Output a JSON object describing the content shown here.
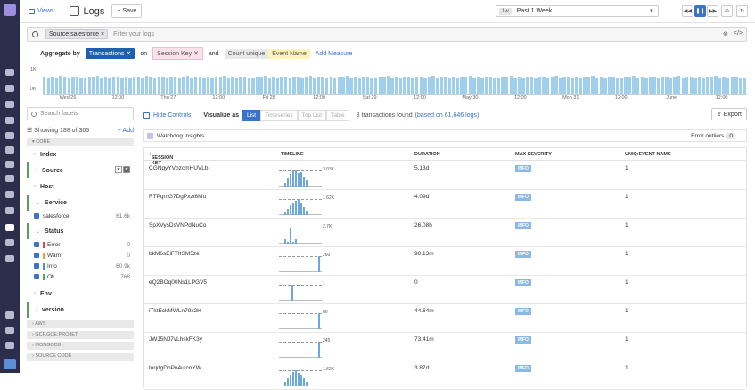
{
  "topbar": {
    "views_label": "Views",
    "title": "Logs",
    "save_label": "+ Save",
    "time_badge": "1w",
    "time_label": "Past 1 Week"
  },
  "search": {
    "chip": "Source:salesforce",
    "placeholder": "Filter your logs"
  },
  "aggregate": {
    "label": "Aggregate by",
    "group": "Transactions",
    "on_label": "on",
    "key": "Session Key",
    "and_label": "and",
    "measure_fn": "Count unique",
    "measure_field": "Event Name",
    "add_measure": "Add Measure"
  },
  "histogram": {
    "y_top": "1K",
    "y_bottom": "0K",
    "dates": [
      "Wed 26",
      "12:00",
      "Thu 27",
      "12:00",
      "Fri 28",
      "12:00",
      "Sat 29",
      "12:00",
      "May 30",
      "12:00",
      "Mon 31",
      "12:00",
      "June",
      "12:00"
    ],
    "bars": [
      0.72,
      0.68,
      0.7,
      0.66,
      0.74,
      0.7,
      0.68,
      0.72,
      0.7,
      0.66,
      0.68,
      0.72,
      0.7,
      0.74,
      0.66,
      0.7,
      0.68,
      0.72,
      0.7,
      0.68,
      0.7,
      0.66,
      0.72,
      0.7,
      0.68,
      0.74,
      0.7,
      0.66,
      0.72,
      0.7,
      0.68,
      0.7,
      0.72,
      0.66,
      0.7,
      0.74,
      0.68,
      0.72,
      0.7,
      0.66,
      0.7,
      0.68,
      0.72,
      0.7,
      0.74,
      0.66,
      0.7,
      0.68,
      0.72,
      0.7,
      0.68,
      0.66,
      0.7,
      0.72,
      0.74,
      0.68,
      0.7,
      0.66,
      0.72,
      0.7,
      0.68,
      0.7,
      0.72,
      0.66,
      0.7,
      0.74,
      0.68,
      0.72,
      0.7,
      0.66,
      0.7,
      0.68,
      0.72,
      0.7,
      0.74,
      0.66,
      0.7,
      0.68,
      0.72,
      0.7,
      0.68,
      0.66,
      0.7,
      0.72,
      0.74,
      0.68,
      0.7,
      0.66,
      0.72,
      0.7,
      0.68,
      0.7,
      0.72,
      0.66,
      0.7,
      0.74,
      0.68,
      0.72,
      0.7,
      0.66,
      0.7,
      0.68,
      0.72,
      0.7,
      0.74,
      0.66,
      0.7,
      0.68,
      0.72,
      0.7,
      0.68,
      0.66,
      0.7,
      0.72,
      0.74,
      0.68,
      0.7,
      0.66,
      0.72,
      0.7,
      0.68,
      0.7,
      0.72,
      0.66,
      0.7,
      0.74,
      0.68,
      0.72,
      0.7,
      0.66,
      0.7,
      0.68,
      0.72,
      0.7,
      0.74,
      0.66,
      0.7,
      0.68,
      0.72,
      0.7,
      0.68,
      0.66,
      0.7,
      0.72,
      0.74,
      0.68,
      0.7,
      0.66,
      0.72,
      0.7,
      0.68,
      0.7,
      0.72,
      0.66,
      0.7,
      0.74,
      0.68,
      0.72,
      0.7,
      0.66,
      0.7,
      0.68,
      0.72,
      0.7,
      0.74,
      0.66,
      0.7,
      0.68,
      0.72,
      0.7,
      0.68,
      0.66
    ]
  },
  "facets": {
    "search_placeholder": "Search facets",
    "showing": "Showing 188 of 365",
    "add_label": "+ Add",
    "core_label": "CORE",
    "index": "Index",
    "source": "Source",
    "host": "Host",
    "service": "Service",
    "service_value": "salesforce",
    "service_count": "61.6k",
    "status": "Status",
    "status_rows": [
      {
        "label": "Error",
        "count": "0",
        "color": "#e04848"
      },
      {
        "label": "Warn",
        "count": "0",
        "color": "#f0a030"
      },
      {
        "label": "Info",
        "count": "60.9k",
        "color": "#4a90d9"
      },
      {
        "label": "Ok",
        "count": "768",
        "color": "#5aa05a"
      }
    ],
    "env": "Env",
    "version": "version",
    "groups": [
      "AWS",
      "GCP.GCE.PROJET",
      "MONGODB",
      "SOURCE CODE"
    ]
  },
  "main": {
    "hide_controls": "Hide Controls",
    "visualize_as": "Visualize as",
    "tabs": [
      "List",
      "Timeseries",
      "Top List",
      "Table"
    ],
    "found": "8 transactions found",
    "found_link": "(based on 61,646 logs)",
    "export_label": "Export",
    "watchdog": "Watchdog Insights",
    "outliers_label": "Error outliers",
    "outliers_count": "0",
    "columns": [
      "SESSION KEY",
      "TIMELINE",
      "DURATION",
      "MAX SEVERITY",
      "UNIQ:EVENT NAME"
    ],
    "rows": [
      {
        "key": "CGNqyYVbzcmHUVLb",
        "max": "3.03K",
        "duration": "5.13d",
        "severity": "INFO",
        "uniq": "1"
      },
      {
        "key": "RTPqmG7DgPxzt6Mu",
        "max": "1.62K",
        "duration": "4.09d",
        "severity": "INFO",
        "uniq": "1"
      },
      {
        "key": "SpXVysDsVNPdNuCo",
        "max": "2.7K",
        "duration": "26.08h",
        "severity": "INFO",
        "uniq": "1"
      },
      {
        "key": "bkM6sEiFTItSM5ze",
        "max": "260",
        "duration": "90.13m",
        "severity": "INFO",
        "uniq": "1"
      },
      {
        "key": "eQ2BOq00Ns1LPGV5",
        "max": "1",
        "duration": "0",
        "severity": "INFO",
        "uniq": "1"
      },
      {
        "key": "iTktEckMWLn79x2H",
        "max": "80",
        "duration": "44.64m",
        "severity": "INFO",
        "uniq": "1"
      },
      {
        "key": "JWJ5NJ7vLhskFK3y",
        "max": "245",
        "duration": "73.41m",
        "severity": "INFO",
        "uniq": "1"
      },
      {
        "key": "toqdgDbPn4utcnYW",
        "max": "1.62K",
        "duration": "3.87d",
        "severity": "INFO",
        "uniq": "1"
      }
    ]
  }
}
